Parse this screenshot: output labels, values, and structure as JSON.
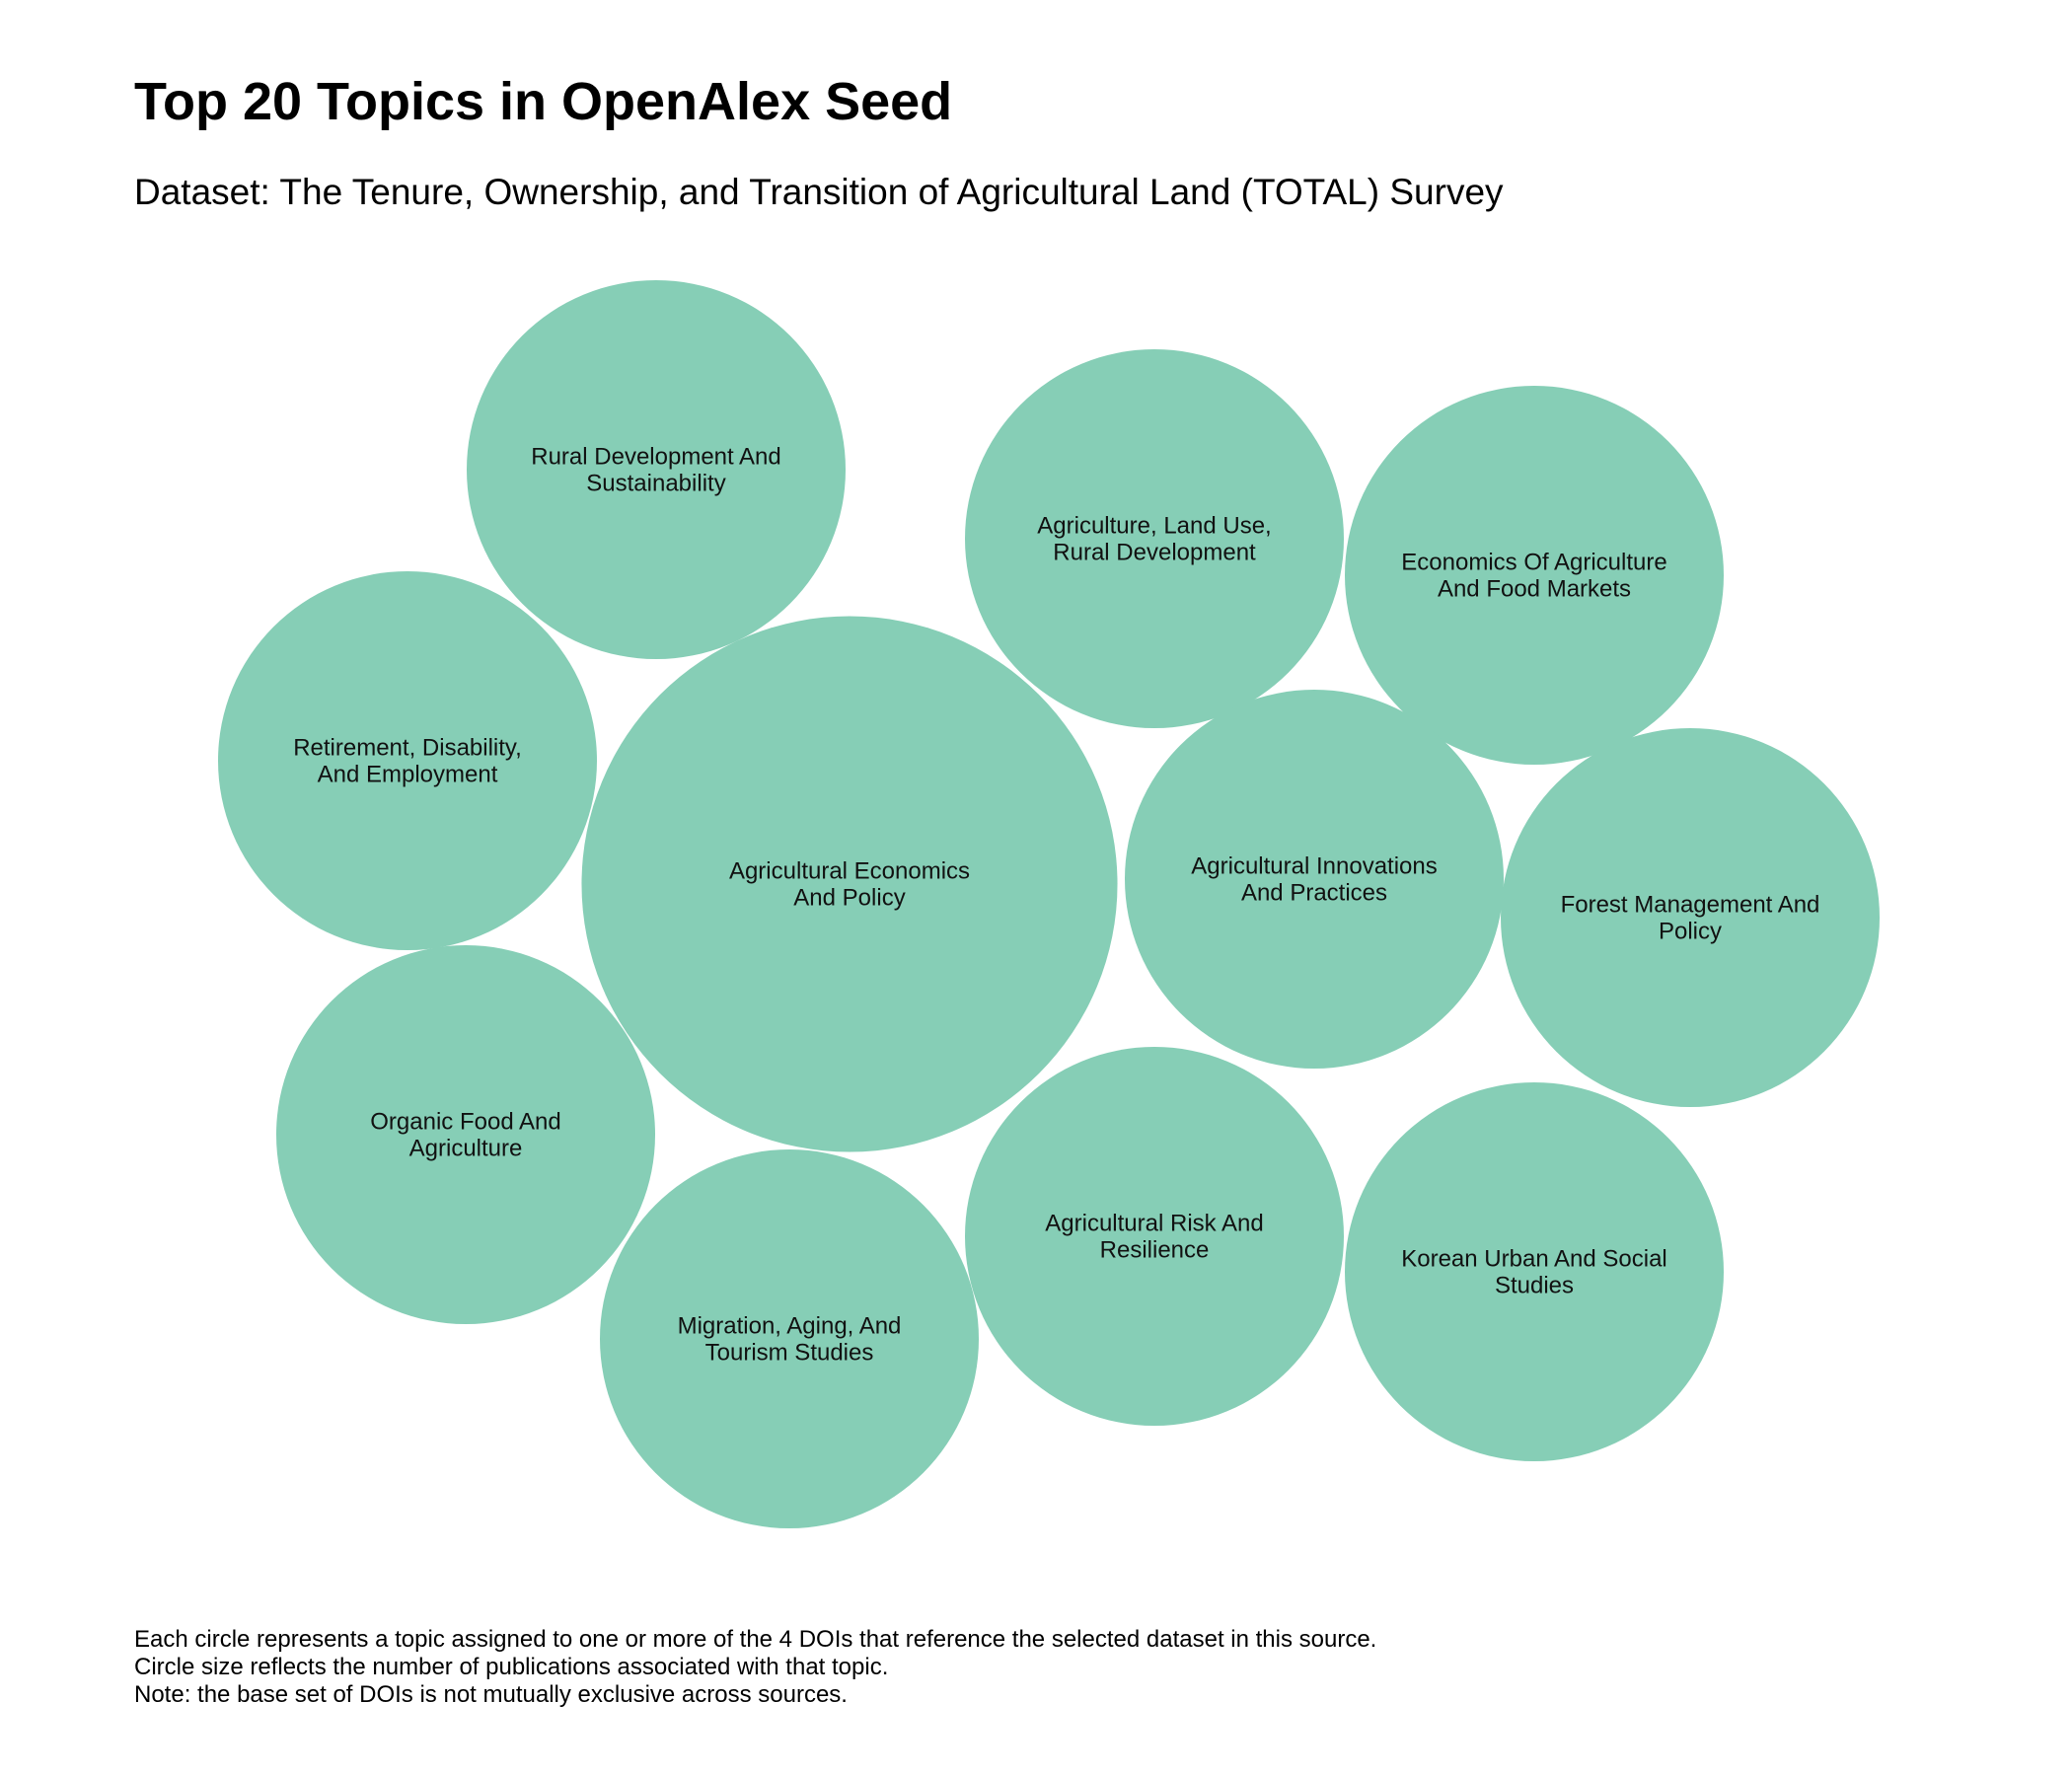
{
  "title": "Top 20 Topics in OpenAlex Seed",
  "subtitle": "Dataset: The Tenure, Ownership, and Transition of Agricultural Land (TOTAL) Survey",
  "colors": {
    "bubble": "#86CEB6",
    "text": "#111111"
  },
  "chart_data": {
    "type": "bubble",
    "size_measure": "number of publications",
    "bubbles": [
      {
        "label_lines": [
          "Agricultural Economics",
          "And Policy"
        ],
        "value": 2
      },
      {
        "label_lines": [
          "Rural Development And",
          "Sustainability"
        ],
        "value": 1
      },
      {
        "label_lines": [
          "Agriculture, Land Use,",
          "Rural Development"
        ],
        "value": 1
      },
      {
        "label_lines": [
          "Economics Of Agriculture",
          "And Food Markets"
        ],
        "value": 1
      },
      {
        "label_lines": [
          "Retirement, Disability,",
          "And Employment"
        ],
        "value": 1
      },
      {
        "label_lines": [
          "Agricultural Innovations",
          "And Practices"
        ],
        "value": 1
      },
      {
        "label_lines": [
          "Forest Management And",
          "Policy"
        ],
        "value": 1
      },
      {
        "label_lines": [
          "Organic Food And",
          "Agriculture"
        ],
        "value": 1
      },
      {
        "label_lines": [
          "Agricultural Risk And",
          "Resilience"
        ],
        "value": 1
      },
      {
        "label_lines": [
          "Korean Urban And Social",
          "Studies"
        ],
        "value": 1
      },
      {
        "label_lines": [
          "Migration, Aging, And",
          "Tourism Studies"
        ],
        "value": 1
      }
    ]
  },
  "footnotes": [
    "Each circle represents a topic assigned to one or more of the 4 DOIs that reference the selected dataset in this source.",
    "Circle size reflects the number of publications associated with that topic.",
    "Note: the base set of DOIs is not mutually exclusive across sources."
  ]
}
